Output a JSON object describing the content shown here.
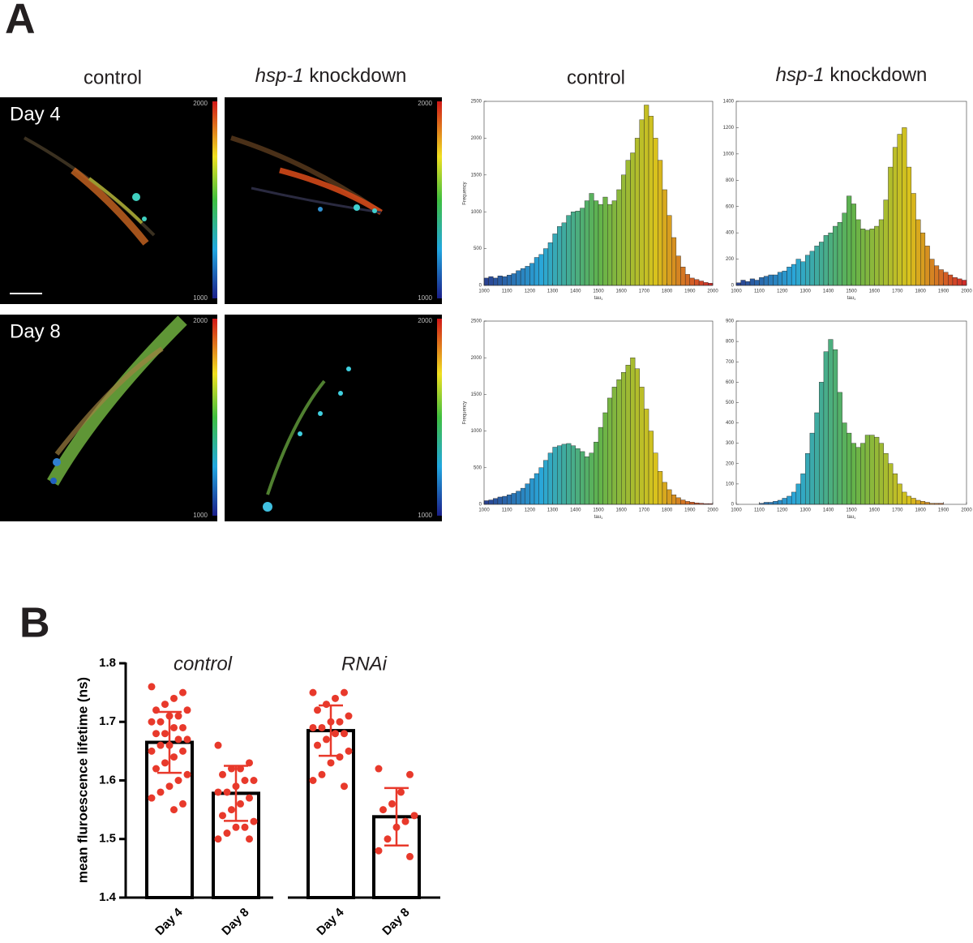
{
  "panel_a": {
    "label": "A",
    "image_headers": [
      "control",
      {
        "italic": "hsp-1",
        "plain": "knockdown"
      }
    ],
    "histogram_headers": [
      "control",
      {
        "italic": "hsp-1",
        "plain": "knockdown"
      }
    ],
    "images": [
      {
        "row_label": "Day 4",
        "colorbar_max": 2000,
        "colorbar_min": 1000
      },
      {
        "colorbar_max": 2000,
        "colorbar_min": 1000
      },
      {
        "row_label": "Day 8",
        "colorbar_max": 2000,
        "colorbar_min": 1000
      },
      {
        "colorbar_max": 2000,
        "colorbar_min": 1000
      }
    ]
  },
  "panel_b": {
    "label": "B"
  },
  "chart_data": [
    {
      "type": "histogram",
      "xlabel": "tau",
      "xlabel_sub": "1",
      "ylabel": "Frequency",
      "colormap": [
        "#2a3f8f",
        "#2aa6d8",
        "#5fb24c",
        "#d9c21c",
        "#d0262a"
      ],
      "xlim": [
        1000,
        2000
      ],
      "xticks": [
        1000,
        1100,
        1200,
        1300,
        1400,
        1500,
        1600,
        1700,
        1800,
        1900,
        2000
      ],
      "ylim": [
        0,
        2500
      ],
      "yticks": [
        0,
        500,
        1000,
        1500,
        2000,
        2500
      ],
      "bins": [
        1000,
        1020,
        1040,
        1060,
        1080,
        1100,
        1120,
        1140,
        1160,
        1180,
        1200,
        1220,
        1240,
        1260,
        1280,
        1300,
        1320,
        1340,
        1360,
        1380,
        1400,
        1420,
        1440,
        1460,
        1480,
        1500,
        1520,
        1540,
        1560,
        1580,
        1600,
        1620,
        1640,
        1660,
        1680,
        1700,
        1720,
        1740,
        1760,
        1780,
        1800,
        1820,
        1840,
        1860,
        1880,
        1900,
        1920,
        1940,
        1960,
        1980,
        2000
      ],
      "counts": [
        100,
        120,
        100,
        130,
        120,
        140,
        160,
        200,
        230,
        260,
        300,
        380,
        420,
        500,
        580,
        700,
        800,
        850,
        950,
        1000,
        1010,
        1050,
        1150,
        1250,
        1150,
        1100,
        1200,
        1100,
        1150,
        1300,
        1500,
        1700,
        1800,
        2000,
        2250,
        2450,
        2300,
        2000,
        1700,
        1300,
        950,
        650,
        400,
        250,
        150,
        100,
        80,
        60,
        40,
        30
      ]
    },
    {
      "type": "histogram",
      "xlabel": "tau",
      "xlabel_sub": "1",
      "colormap": [
        "#2a3f8f",
        "#2aa6d8",
        "#5fb24c",
        "#d9c21c",
        "#d0262a"
      ],
      "xlim": [
        1000,
        2000
      ],
      "xticks": [
        1000,
        1100,
        1200,
        1300,
        1400,
        1500,
        1600,
        1700,
        1800,
        1900,
        2000
      ],
      "ylim": [
        0,
        1400
      ],
      "yticks": [
        0,
        200,
        400,
        600,
        800,
        1000,
        1200,
        1400
      ],
      "bins": [
        1000,
        1020,
        1040,
        1060,
        1080,
        1100,
        1120,
        1140,
        1160,
        1180,
        1200,
        1220,
        1240,
        1260,
        1280,
        1300,
        1320,
        1340,
        1360,
        1380,
        1400,
        1420,
        1440,
        1460,
        1480,
        1500,
        1520,
        1540,
        1560,
        1580,
        1600,
        1620,
        1640,
        1660,
        1680,
        1700,
        1720,
        1740,
        1760,
        1780,
        1800,
        1820,
        1840,
        1860,
        1880,
        1900,
        1920,
        1940,
        1960,
        1980,
        2000
      ],
      "counts": [
        20,
        40,
        30,
        50,
        40,
        60,
        70,
        80,
        80,
        100,
        110,
        140,
        160,
        200,
        180,
        230,
        260,
        300,
        330,
        380,
        400,
        450,
        480,
        550,
        680,
        620,
        500,
        430,
        420,
        430,
        450,
        500,
        650,
        900,
        1050,
        1150,
        1200,
        900,
        700,
        500,
        400,
        300,
        200,
        150,
        120,
        100,
        80,
        60,
        50,
        40
      ]
    },
    {
      "type": "histogram",
      "xlabel": "tau",
      "xlabel_sub": "1",
      "ylabel": "Frequency",
      "colormap": [
        "#2a3f8f",
        "#2aa6d8",
        "#5fb24c",
        "#d9c21c",
        "#d0262a"
      ],
      "xlim": [
        1000,
        2000
      ],
      "xticks": [
        1000,
        1100,
        1200,
        1300,
        1400,
        1500,
        1600,
        1700,
        1800,
        1900,
        2000
      ],
      "ylim": [
        0,
        2500
      ],
      "yticks": [
        0,
        500,
        1000,
        1500,
        2000,
        2500
      ],
      "bins": [
        1000,
        1020,
        1040,
        1060,
        1080,
        1100,
        1120,
        1140,
        1160,
        1180,
        1200,
        1220,
        1240,
        1260,
        1280,
        1300,
        1320,
        1340,
        1360,
        1380,
        1400,
        1420,
        1440,
        1460,
        1480,
        1500,
        1520,
        1540,
        1560,
        1580,
        1600,
        1620,
        1640,
        1660,
        1680,
        1700,
        1720,
        1740,
        1760,
        1780,
        1800,
        1820,
        1840,
        1860,
        1880,
        1900,
        1920,
        1940,
        1960,
        1980,
        2000
      ],
      "counts": [
        50,
        60,
        80,
        100,
        110,
        130,
        150,
        180,
        220,
        280,
        350,
        420,
        500,
        600,
        700,
        780,
        800,
        820,
        830,
        800,
        760,
        720,
        650,
        700,
        850,
        1050,
        1250,
        1450,
        1600,
        1700,
        1800,
        1900,
        2000,
        1850,
        1600,
        1300,
        1000,
        700,
        450,
        300,
        200,
        130,
        90,
        60,
        40,
        30,
        20,
        15,
        10,
        10
      ]
    },
    {
      "type": "histogram",
      "xlabel": "tau",
      "xlabel_sub": "1",
      "colormap": [
        "#2a3f8f",
        "#2aa6d8",
        "#5fb24c",
        "#d9c21c",
        "#d0262a"
      ],
      "xlim": [
        1000,
        2000
      ],
      "xticks": [
        1000,
        1100,
        1200,
        1300,
        1400,
        1500,
        1600,
        1700,
        1800,
        1900,
        2000
      ],
      "ylim": [
        0,
        900
      ],
      "yticks": [
        0,
        100,
        200,
        300,
        400,
        500,
        600,
        700,
        800,
        900
      ],
      "bins": [
        1000,
        1020,
        1040,
        1060,
        1080,
        1100,
        1120,
        1140,
        1160,
        1180,
        1200,
        1220,
        1240,
        1260,
        1280,
        1300,
        1320,
        1340,
        1360,
        1380,
        1400,
        1420,
        1440,
        1460,
        1480,
        1500,
        1520,
        1540,
        1560,
        1580,
        1600,
        1620,
        1640,
        1660,
        1680,
        1700,
        1720,
        1740,
        1760,
        1780,
        1800,
        1820,
        1840,
        1860,
        1880,
        1900,
        1920,
        1940,
        1960,
        1980,
        2000
      ],
      "counts": [
        0,
        0,
        0,
        0,
        0,
        5,
        10,
        10,
        15,
        20,
        30,
        40,
        60,
        100,
        150,
        250,
        350,
        450,
        600,
        750,
        810,
        760,
        550,
        400,
        350,
        300,
        280,
        300,
        340,
        340,
        330,
        300,
        250,
        200,
        150,
        100,
        60,
        40,
        30,
        20,
        15,
        10,
        5,
        5,
        5,
        0,
        0,
        0,
        0,
        0
      ]
    },
    {
      "type": "bar",
      "ylabel": "mean fluroescence lifetime (ns)",
      "color": "#e8392b",
      "ylim": [
        1.4,
        1.8
      ],
      "yticks": [
        1.4,
        1.5,
        1.6,
        1.7,
        1.8
      ],
      "groups": [
        "control",
        "RNAi"
      ],
      "categories": [
        "Day 4",
        "Day 8",
        "Day 4",
        "Day 8"
      ],
      "values": [
        1.665,
        1.578,
        1.685,
        1.538
      ],
      "errors": [
        0.052,
        0.047,
        0.043,
        0.049
      ],
      "points": [
        [
          1.76,
          1.75,
          1.74,
          1.73,
          1.72,
          1.72,
          1.71,
          1.71,
          1.7,
          1.7,
          1.69,
          1.69,
          1.68,
          1.68,
          1.67,
          1.67,
          1.66,
          1.66,
          1.65,
          1.65,
          1.64,
          1.63,
          1.62,
          1.61,
          1.6,
          1.59,
          1.58,
          1.57,
          1.56,
          1.55
        ],
        [
          1.66,
          1.63,
          1.62,
          1.62,
          1.61,
          1.6,
          1.6,
          1.59,
          1.58,
          1.58,
          1.57,
          1.56,
          1.55,
          1.54,
          1.53,
          1.52,
          1.52,
          1.51,
          1.5,
          1.5
        ],
        [
          1.75,
          1.75,
          1.74,
          1.73,
          1.72,
          1.71,
          1.7,
          1.7,
          1.69,
          1.69,
          1.68,
          1.68,
          1.67,
          1.66,
          1.65,
          1.64,
          1.63,
          1.61,
          1.6,
          1.59
        ],
        [
          1.62,
          1.61,
          1.58,
          1.56,
          1.55,
          1.54,
          1.53,
          1.52,
          1.5,
          1.48,
          1.47
        ]
      ]
    }
  ]
}
